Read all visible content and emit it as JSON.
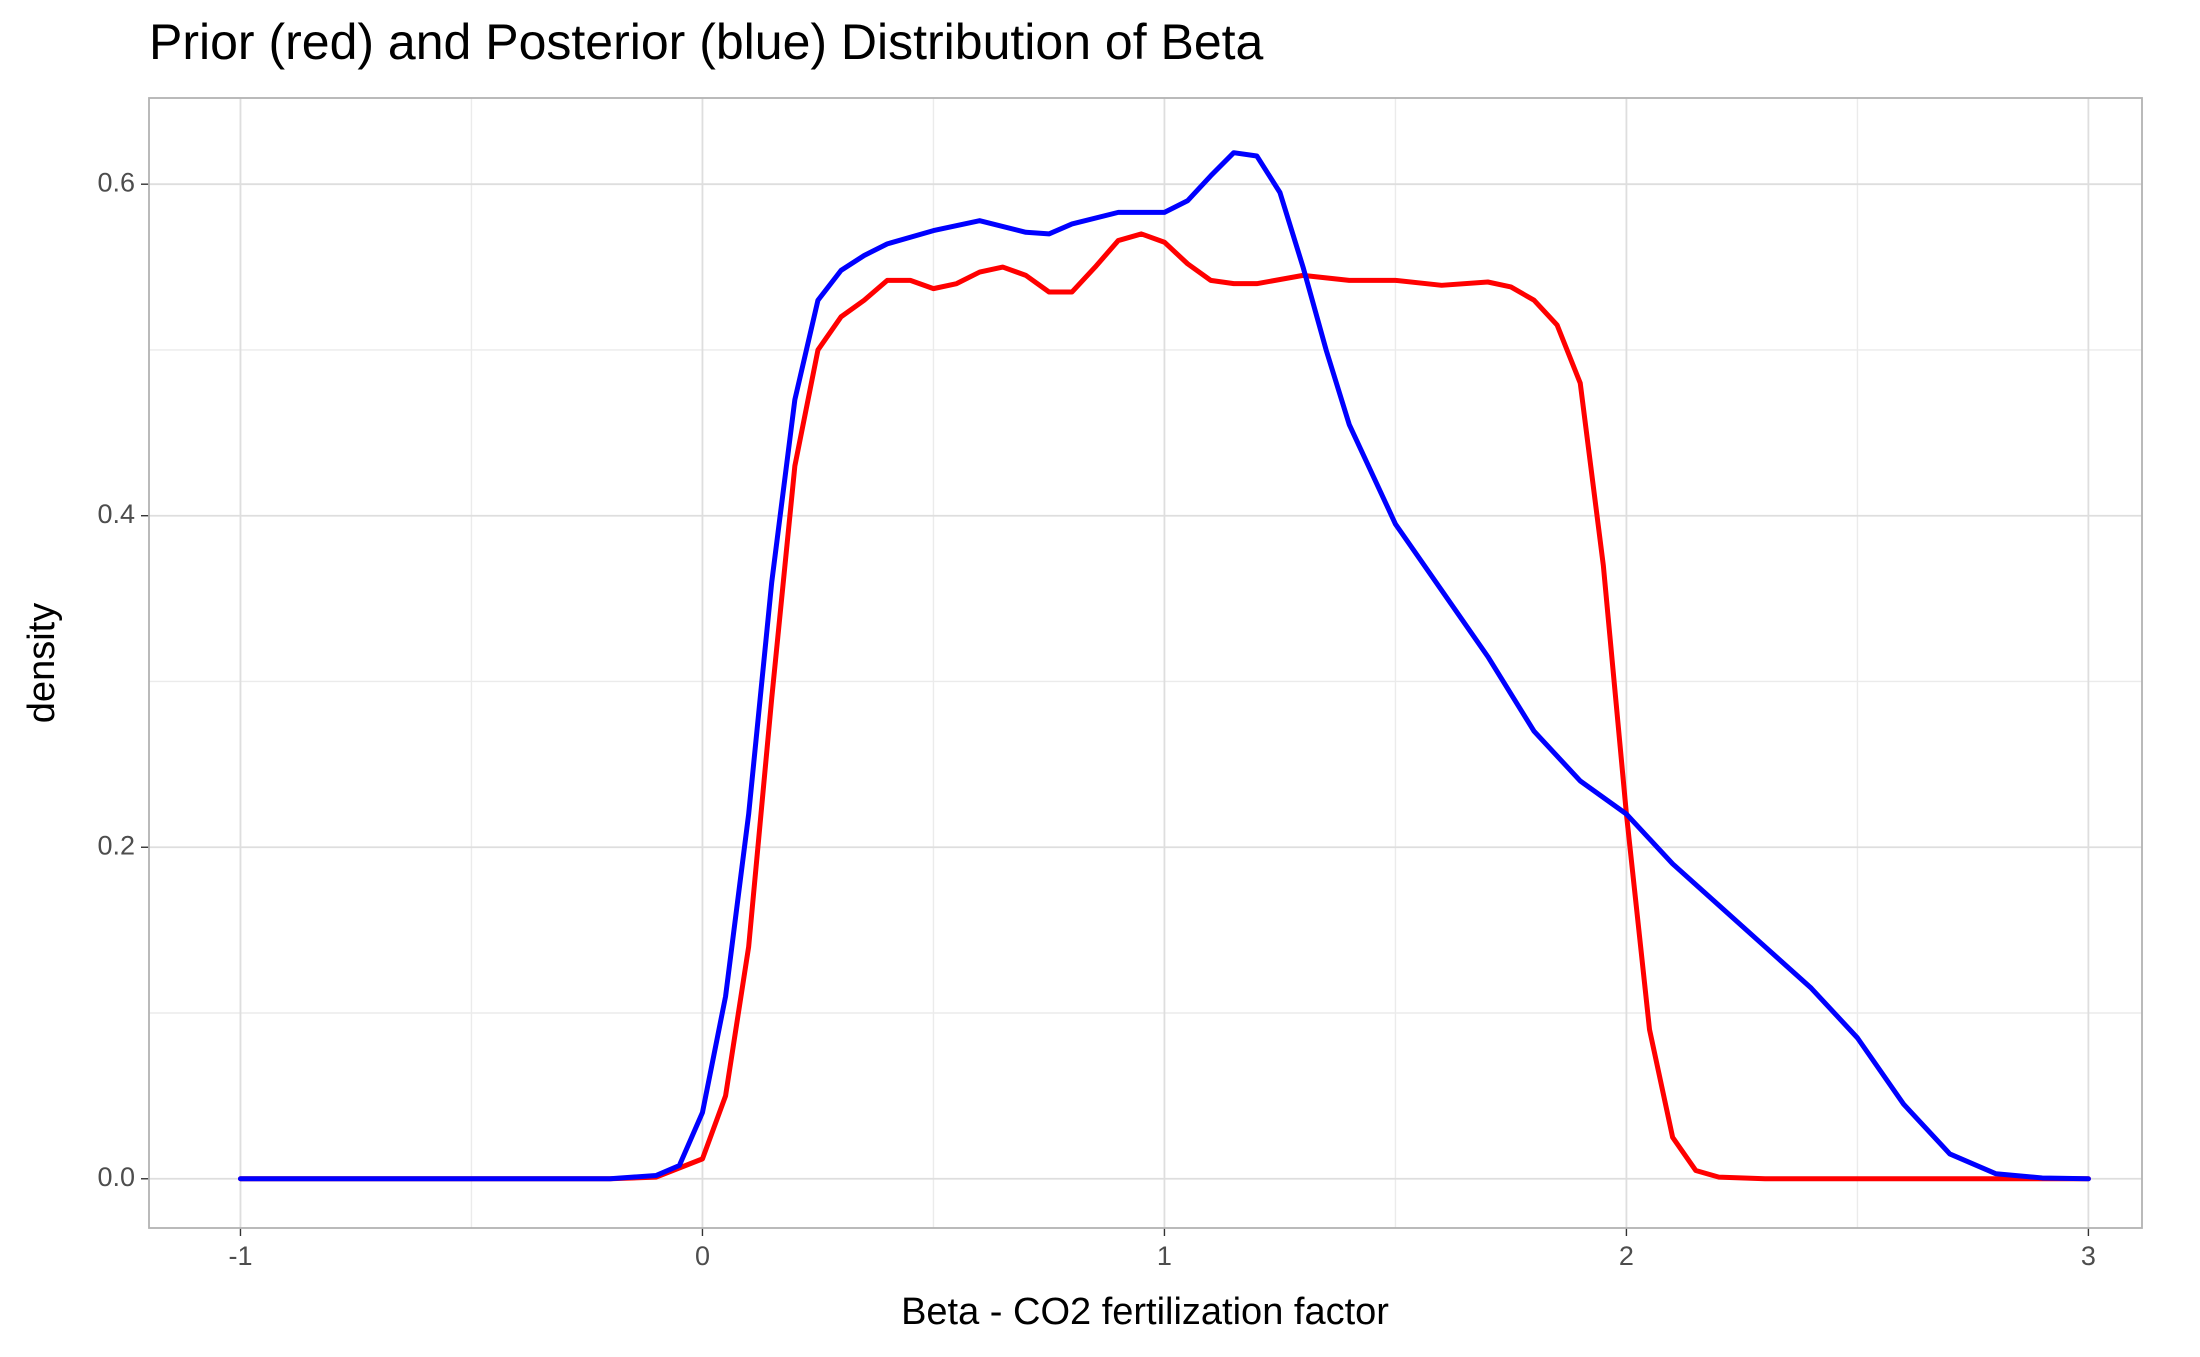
{
  "chart_data": {
    "type": "line",
    "title": "Prior (red) and Posterior (blue) Distribution of Beta",
    "x_label": "Beta - CO2 fertilization factor",
    "y_label": "density",
    "xlim": [
      -1.198,
      3.116
    ],
    "ylim": [
      -0.0297,
      0.652
    ],
    "xticks": [
      -1,
      0,
      1,
      2,
      3
    ],
    "yticks": [
      {
        "value": 0,
        "label": "0.0"
      },
      0.2,
      0.4,
      0.6
    ],
    "grid": true,
    "minor_grid": true,
    "series": [
      {
        "name": "Prior",
        "color": "#ff0000",
        "x": [
          -1,
          -0.5,
          -0.2,
          -0.1,
          0,
          0.05,
          0.1,
          0.15,
          0.2,
          0.25,
          0.3,
          0.35,
          0.4,
          0.45,
          0.5,
          0.55,
          0.6,
          0.65,
          0.7,
          0.75,
          0.8,
          0.85,
          0.9,
          0.95,
          1.0,
          1.05,
          1.1,
          1.15,
          1.2,
          1.3,
          1.4,
          1.5,
          1.6,
          1.7,
          1.75,
          1.8,
          1.85,
          1.9,
          1.95,
          2.0,
          2.05,
          2.1,
          2.15,
          2.2,
          2.3,
          3
        ],
        "values": [
          0,
          0,
          0,
          0.001,
          0.012,
          0.05,
          0.14,
          0.29,
          0.43,
          0.5,
          0.52,
          0.53,
          0.542,
          0.542,
          0.537,
          0.54,
          0.547,
          0.55,
          0.545,
          0.535,
          0.535,
          0.55,
          0.566,
          0.57,
          0.565,
          0.552,
          0.542,
          0.54,
          0.54,
          0.545,
          0.542,
          0.542,
          0.539,
          0.541,
          0.538,
          0.53,
          0.515,
          0.48,
          0.37,
          0.22,
          0.09,
          0.025,
          0.005,
          0.001,
          0,
          0
        ]
      },
      {
        "name": "Posterior",
        "color": "#0000ff",
        "x": [
          -1,
          -0.5,
          -0.2,
          -0.1,
          -0.05,
          0,
          0.05,
          0.1,
          0.15,
          0.2,
          0.25,
          0.3,
          0.35,
          0.4,
          0.5,
          0.6,
          0.7,
          0.75,
          0.8,
          0.9,
          1.0,
          1.05,
          1.1,
          1.15,
          1.2,
          1.25,
          1.3,
          1.35,
          1.4,
          1.5,
          1.6,
          1.7,
          1.8,
          1.9,
          2.0,
          2.1,
          2.2,
          2.3,
          2.4,
          2.5,
          2.6,
          2.7,
          2.8,
          2.9,
          3.0
        ],
        "values": [
          0,
          0,
          0,
          0.002,
          0.008,
          0.04,
          0.11,
          0.22,
          0.36,
          0.47,
          0.53,
          0.548,
          0.557,
          0.564,
          0.572,
          0.578,
          0.571,
          0.57,
          0.576,
          0.583,
          0.583,
          0.59,
          0.605,
          0.619,
          0.617,
          0.595,
          0.55,
          0.5,
          0.455,
          0.395,
          0.355,
          0.315,
          0.27,
          0.24,
          0.22,
          0.19,
          0.165,
          0.14,
          0.115,
          0.085,
          0.045,
          0.015,
          0.003,
          0.0005,
          0
        ]
      }
    ]
  }
}
